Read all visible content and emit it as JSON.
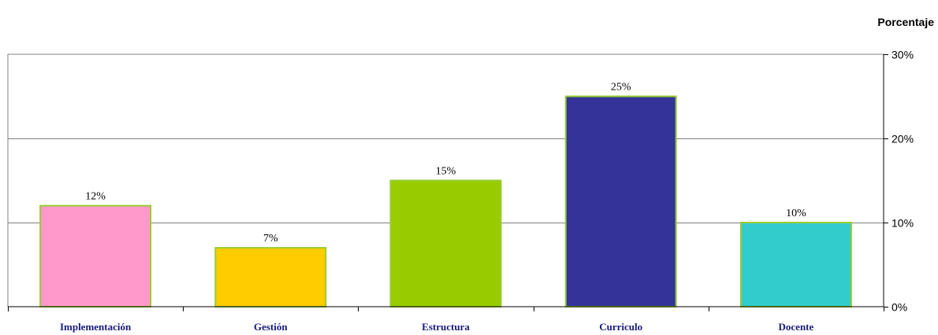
{
  "chart_data": {
    "type": "bar",
    "ylabel": "Porcentaje",
    "categories": [
      "Implementación",
      "Gestión",
      "Estructura",
      "Curriculo",
      "Docente"
    ],
    "values": [
      12,
      7,
      15,
      25,
      10
    ],
    "data_labels": [
      "12%",
      "7%",
      "15%",
      "25%",
      "10%"
    ],
    "colors": [
      "#ff99cc",
      "#ffcc00",
      "#99cc00",
      "#333399",
      "#33cccc"
    ],
    "bar_border_color": "#99cc33",
    "ylim": [
      0,
      30
    ],
    "yticks": [
      0,
      10,
      20,
      30
    ],
    "ytick_labels": [
      "0%",
      "10%",
      "20%",
      "30%"
    ],
    "y_axis_side": "right",
    "grid": true
  }
}
